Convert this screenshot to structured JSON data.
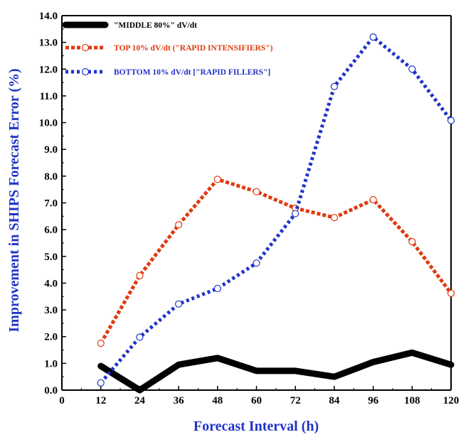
{
  "chart_data": {
    "type": "line",
    "xlabel": "Forecast Interval (h)",
    "ylabel": "Improvement in SHIPS Forecast Error (%)",
    "xlim": [
      0,
      120
    ],
    "ylim": [
      0,
      14
    ],
    "xticks": [
      "0",
      "12",
      "24",
      "36",
      "48",
      "60",
      "72",
      "84",
      "96",
      "108",
      "120"
    ],
    "yticks": [
      "0.0",
      "1.0",
      "2.0",
      "3.0",
      "4.0",
      "5.0",
      "6.0",
      "7.0",
      "8.0",
      "9.0",
      "10.0",
      "11.0",
      "12.0",
      "13.0",
      "14.0"
    ],
    "grid": false,
    "legend_position": "top-left",
    "x": [
      12,
      24,
      36,
      48,
      60,
      72,
      84,
      96,
      108,
      120
    ],
    "series": [
      {
        "name": "\"MIDDLE 80%\" dV/dt",
        "color": "#000000",
        "style": "solid-thick",
        "values": [
          0.9,
          0.0,
          0.95,
          1.2,
          0.72,
          0.72,
          0.5,
          1.05,
          1.4,
          0.95
        ]
      },
      {
        "name": "TOP 10% dV/dt (\"RAPID INTENSIFIERS\")",
        "color": "#e03a10",
        "style": "dashed-open-circles",
        "values": [
          1.75,
          4.28,
          6.18,
          7.88,
          7.42,
          6.8,
          6.45,
          7.12,
          5.55,
          3.62
        ]
      },
      {
        "name": "BOTTOM 10% dV/dt [\"RAPID FILLERS\"]",
        "color": "#1f33c8",
        "style": "dotted-open-circles",
        "values": [
          0.27,
          1.98,
          3.22,
          3.8,
          4.75,
          6.6,
          11.35,
          13.2,
          12.0,
          10.08
        ]
      }
    ]
  }
}
